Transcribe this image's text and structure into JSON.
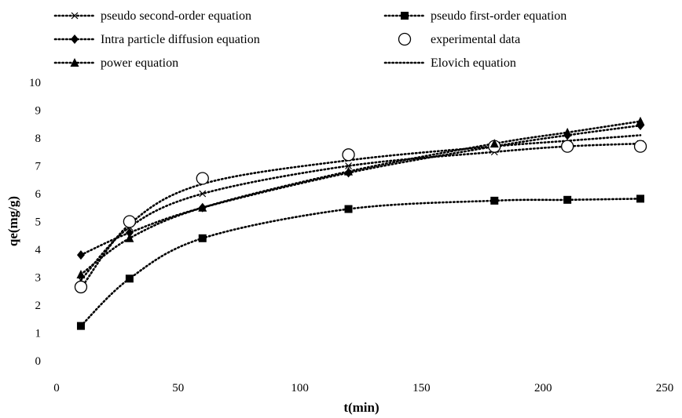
{
  "chart_data": {
    "type": "scatter",
    "title": "",
    "xlabel": "t(min)",
    "ylabel": "qe(mg/g)",
    "xlim": [
      0,
      250
    ],
    "ylim": [
      0,
      10
    ],
    "xticks": [
      0,
      50,
      100,
      150,
      200,
      250
    ],
    "yticks": [
      0,
      1,
      2,
      3,
      4,
      5,
      6,
      7,
      8,
      9,
      10
    ],
    "grid": false,
    "legend_position": "top",
    "x": [
      10,
      30,
      60,
      120,
      180,
      210,
      240
    ],
    "series": [
      {
        "name": "pseudo second-order equation",
        "marker": "x",
        "line": "dotted",
        "values": [
          2.9,
          4.8,
          6.0,
          7.0,
          7.5,
          7.7,
          7.8
        ]
      },
      {
        "name": "pseudo first-order equation",
        "marker": "square",
        "line": "dotted",
        "values": [
          1.25,
          2.95,
          4.4,
          5.45,
          5.75,
          5.78,
          5.82
        ]
      },
      {
        "name": "Intra particle diffusion equation",
        "marker": "diamond",
        "line": "dotted",
        "values": [
          3.8,
          4.6,
          5.5,
          6.75,
          7.7,
          8.1,
          8.45
        ]
      },
      {
        "name": "experimental data",
        "marker": "open-circle",
        "line": "none",
        "values": [
          2.65,
          5.0,
          6.55,
          7.4,
          7.7,
          7.7,
          7.7
        ]
      },
      {
        "name": "power equation",
        "marker": "triangle",
        "line": "dotted",
        "values": [
          3.1,
          4.4,
          5.5,
          6.8,
          7.8,
          8.2,
          8.6
        ]
      },
      {
        "name": "Elovich equation",
        "marker": "none",
        "line": "dotted",
        "values": [
          2.6,
          4.9,
          6.35,
          7.2,
          7.7,
          7.9,
          8.1
        ]
      }
    ]
  }
}
